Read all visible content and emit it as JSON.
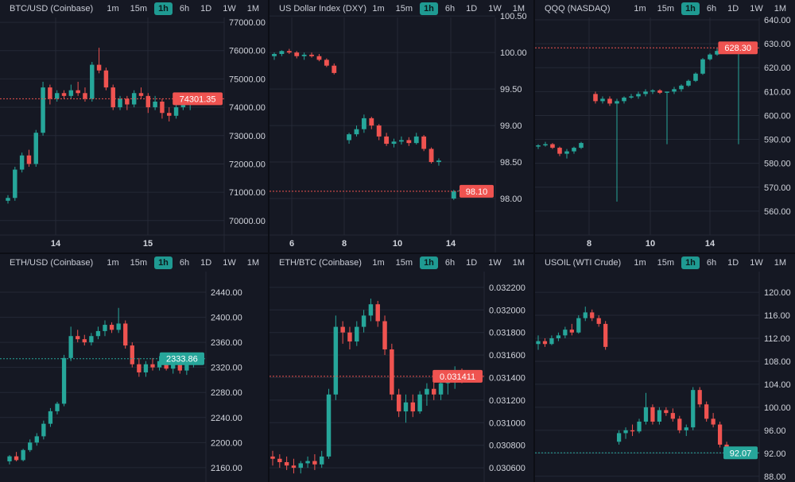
{
  "timeframes": [
    "1m",
    "15m",
    "1h",
    "6h",
    "1D",
    "1W",
    "1M"
  ],
  "active_timeframe": "1h",
  "colors": {
    "up": "#26a69a",
    "down": "#ef5350",
    "background": "#151823",
    "grid": "#252936"
  },
  "chart_data": [
    {
      "type": "candlestick",
      "title": "BTC/USD (Coinbase)",
      "current_price": "74301.35",
      "price_direction": "down",
      "ylim": [
        69490,
        77170
      ],
      "y_ticks": [
        "77000.00",
        "76000.00",
        "75000.00",
        "74000.00",
        "73000.00",
        "72000.00",
        "71000.00",
        "70000.00"
      ],
      "x_ticks": [
        "14",
        "15"
      ],
      "candles": [
        [
          70700,
          70900,
          70600,
          70800
        ],
        [
          70800,
          71900,
          70700,
          71800
        ],
        [
          71800,
          72400,
          71700,
          72300
        ],
        [
          72300,
          72500,
          71900,
          72000
        ],
        [
          72000,
          73200,
          71900,
          73100
        ],
        [
          73100,
          74900,
          73000,
          74700
        ],
        [
          74700,
          74800,
          74100,
          74300
        ],
        [
          74300,
          74600,
          74200,
          74500
        ],
        [
          74500,
          74600,
          74300,
          74400
        ],
        [
          74400,
          74800,
          74300,
          74600
        ],
        [
          74600,
          74900,
          74400,
          74500
        ],
        [
          74500,
          74700,
          74200,
          74300
        ],
        [
          74300,
          75600,
          74200,
          75500
        ],
        [
          75500,
          76100,
          75200,
          75300
        ],
        [
          75300,
          75400,
          74600,
          74700
        ],
        [
          74700,
          74800,
          73900,
          74000
        ],
        [
          74000,
          74400,
          73900,
          74300
        ],
        [
          74300,
          74400,
          73900,
          74100
        ],
        [
          74100,
          74600,
          74000,
          74500
        ],
        [
          74500,
          74700,
          74300,
          74400
        ],
        [
          74400,
          74500,
          73800,
          74000
        ],
        [
          74000,
          74400,
          73900,
          74200
        ],
        [
          74200,
          74300,
          73600,
          73800
        ],
        [
          73800,
          74000,
          73500,
          73700
        ],
        [
          73700,
          74100,
          73600,
          74000
        ],
        [
          74000,
          74300,
          73900,
          74100
        ],
        [
          74100,
          74400,
          73900,
          74300
        ],
        [
          74300,
          74500,
          74200,
          74301.35
        ]
      ]
    },
    {
      "type": "candlestick",
      "title": "US Dollar Index (DXY)",
      "current_price": "98.10",
      "price_direction": "down",
      "ylim": [
        97.5,
        100.48
      ],
      "y_ticks": [
        "100.50",
        "100.00",
        "99.50",
        "99.00",
        "98.50",
        "98.00"
      ],
      "x_ticks": [
        "6",
        "8",
        "10",
        "14"
      ],
      "candles": [
        [
          99.95,
          100.0,
          99.9,
          99.98
        ],
        [
          99.98,
          100.03,
          99.95,
          100.02
        ],
        [
          100.02,
          100.05,
          99.98,
          100.0
        ],
        [
          100.0,
          100.02,
          99.92,
          99.95
        ],
        [
          99.95,
          100.0,
          99.9,
          99.97
        ],
        [
          99.97,
          100.0,
          99.93,
          99.95
        ],
        [
          99.95,
          99.98,
          99.88,
          99.9
        ],
        [
          99.9,
          99.92,
          99.8,
          99.82
        ],
        [
          99.82,
          99.85,
          99.7,
          99.72
        ],
        null,
        [
          98.8,
          98.9,
          98.75,
          98.88
        ],
        [
          98.88,
          99.0,
          98.85,
          98.95
        ],
        [
          98.95,
          99.15,
          98.9,
          99.1
        ],
        [
          99.1,
          99.12,
          98.95,
          99.0
        ],
        [
          99.0,
          99.02,
          98.8,
          98.85
        ],
        [
          98.85,
          98.9,
          98.72,
          98.75
        ],
        [
          98.75,
          98.82,
          98.7,
          98.78
        ],
        [
          98.78,
          98.85,
          98.74,
          98.8
        ],
        [
          98.8,
          98.84,
          98.72,
          98.76
        ],
        [
          98.76,
          98.9,
          98.74,
          98.85
        ],
        [
          98.85,
          98.87,
          98.65,
          98.68
        ],
        [
          98.68,
          98.7,
          98.48,
          98.5
        ],
        [
          98.5,
          98.55,
          98.45,
          98.52
        ],
        null,
        [
          98.0,
          98.12,
          97.98,
          98.1
        ],
        [
          98.1,
          98.14,
          98.05,
          98.12
        ],
        [
          98.12,
          98.13,
          98.06,
          98.08
        ],
        [
          98.08,
          98.12,
          98.05,
          98.1
        ]
      ]
    },
    {
      "type": "candlestick",
      "title": "QQQ (NASDAQ)",
      "current_price": "628.30",
      "price_direction": "down",
      "ylim": [
        550,
        641
      ],
      "y_ticks": [
        "640.00",
        "630.00",
        "620.00",
        "610.00",
        "600.00",
        "590.00",
        "580.00",
        "570.00",
        "560.00"
      ],
      "x_ticks": [
        "8",
        "10",
        "14"
      ],
      "candles": [
        [
          587,
          588,
          586,
          587.5
        ],
        [
          587.5,
          589,
          587,
          588
        ],
        [
          588,
          588.5,
          586,
          586.5
        ],
        [
          586.5,
          587,
          583,
          584
        ],
        [
          584,
          586,
          582,
          585
        ],
        [
          585,
          587,
          584,
          586.5
        ],
        [
          586.5,
          589,
          586,
          588.5
        ],
        null,
        [
          609,
          610,
          605,
          606
        ],
        [
          606,
          608,
          605,
          607
        ],
        [
          607,
          608,
          604,
          605
        ],
        [
          605,
          607,
          564,
          606
        ],
        [
          606,
          608,
          605,
          607.5
        ],
        [
          607.5,
          609,
          607,
          608
        ],
        [
          608,
          610,
          607,
          609
        ],
        [
          609,
          611,
          608,
          610
        ],
        [
          610,
          611,
          609,
          610.5
        ],
        [
          610.5,
          611,
          609,
          609.5
        ],
        [
          609.5,
          610,
          588,
          610
        ],
        [
          610,
          612,
          609,
          611
        ],
        [
          611,
          613,
          610,
          612.5
        ],
        [
          612.5,
          615,
          612,
          614.5
        ],
        [
          614.5,
          618,
          614,
          617.5
        ],
        [
          617.5,
          624,
          617,
          623.5
        ],
        [
          623.5,
          626,
          623,
          625.5
        ],
        [
          625.5,
          628,
          625,
          627
        ],
        [
          627,
          628.5,
          626,
          626.5
        ],
        [
          626.5,
          629,
          626,
          628.3
        ],
        [
          628.3,
          628.5,
          588,
          628.3
        ]
      ]
    },
    {
      "type": "candlestick",
      "title": "ETH/USD (Coinbase)",
      "current_price": "2333.86",
      "price_direction": "up",
      "ylim": [
        2137,
        2473
      ],
      "y_ticks": [
        "2440.00",
        "2400.00",
        "2360.00",
        "2320.00",
        "2280.00",
        "2240.00",
        "2200.00",
        "2160.00"
      ],
      "x_ticks": [],
      "candles": [
        [
          2170,
          2180,
          2165,
          2178
        ],
        [
          2178,
          2185,
          2170,
          2172
        ],
        [
          2172,
          2190,
          2170,
          2188
        ],
        [
          2188,
          2205,
          2185,
          2200
        ],
        [
          2200,
          2215,
          2195,
          2210
        ],
        [
          2210,
          2235,
          2205,
          2230
        ],
        [
          2230,
          2255,
          2225,
          2250
        ],
        [
          2250,
          2265,
          2245,
          2262
        ],
        [
          2262,
          2340,
          2258,
          2335
        ],
        [
          2335,
          2385,
          2330,
          2370
        ],
        [
          2370,
          2380,
          2360,
          2365
        ],
        [
          2365,
          2372,
          2355,
          2360
        ],
        [
          2360,
          2375,
          2355,
          2370
        ],
        [
          2370,
          2385,
          2365,
          2378
        ],
        [
          2378,
          2395,
          2370,
          2388
        ],
        [
          2388,
          2392,
          2375,
          2380
        ],
        [
          2380,
          2415,
          2375,
          2390
        ],
        [
          2390,
          2395,
          2350,
          2355
        ],
        [
          2355,
          2360,
          2320,
          2325
        ],
        [
          2325,
          2335,
          2305,
          2312
        ],
        [
          2312,
          2330,
          2305,
          2325
        ],
        [
          2325,
          2335,
          2315,
          2320
        ],
        [
          2320,
          2338,
          2315,
          2330
        ],
        [
          2330,
          2335,
          2315,
          2318
        ],
        [
          2318,
          2332,
          2310,
          2328
        ],
        [
          2328,
          2335,
          2310,
          2315
        ],
        [
          2315,
          2330,
          2308,
          2325
        ],
        [
          2325,
          2340,
          2320,
          2335
        ],
        [
          2335,
          2338,
          2328,
          2333.86
        ]
      ]
    },
    {
      "type": "candlestick",
      "title": "ETH/BTC (Coinbase)",
      "current_price": "0.031411",
      "price_direction": "down",
      "ylim": [
        0.030474,
        0.03234
      ],
      "y_ticks": [
        "0.032200",
        "0.032000",
        "0.031800",
        "0.031600",
        "0.031400",
        "0.031200",
        "0.031000",
        "0.030800",
        "0.030600"
      ],
      "x_ticks": [],
      "candles": [
        [
          0.0307,
          0.03075,
          0.03062,
          0.03068
        ],
        [
          0.03068,
          0.03072,
          0.0306,
          0.03065
        ],
        [
          0.03065,
          0.0307,
          0.03058,
          0.03062
        ],
        [
          0.03062,
          0.03068,
          0.03055,
          0.0306
        ],
        [
          0.0306,
          0.03066,
          0.03055,
          0.03064
        ],
        [
          0.03064,
          0.0307,
          0.0306,
          0.03066
        ],
        [
          0.03066,
          0.03072,
          0.03058,
          0.03063
        ],
        [
          0.03063,
          0.03075,
          0.0306,
          0.0307
        ],
        [
          0.0307,
          0.0313,
          0.03068,
          0.03125
        ],
        [
          0.03125,
          0.03195,
          0.0312,
          0.03185
        ],
        [
          0.03185,
          0.0319,
          0.0317,
          0.0318
        ],
        [
          0.0318,
          0.03185,
          0.03165,
          0.03172
        ],
        [
          0.03172,
          0.0319,
          0.03168,
          0.03185
        ],
        [
          0.03185,
          0.032,
          0.0318,
          0.03195
        ],
        [
          0.03195,
          0.0321,
          0.0319,
          0.03205
        ],
        [
          0.03205,
          0.03208,
          0.03185,
          0.0319
        ],
        [
          0.0319,
          0.03195,
          0.0316,
          0.03165
        ],
        [
          0.03165,
          0.0317,
          0.0312,
          0.03125
        ],
        [
          0.03125,
          0.0313,
          0.03105,
          0.0311
        ],
        [
          0.0311,
          0.03125,
          0.031,
          0.03118
        ],
        [
          0.03118,
          0.03125,
          0.03105,
          0.0311
        ],
        [
          0.0311,
          0.03128,
          0.03108,
          0.03125
        ],
        [
          0.03125,
          0.03135,
          0.03115,
          0.0313
        ],
        [
          0.0313,
          0.03138,
          0.0312,
          0.03125
        ],
        [
          0.03125,
          0.0314,
          0.0312,
          0.03135
        ],
        [
          0.03135,
          0.03142,
          0.03125,
          0.03138
        ],
        [
          0.03138,
          0.0315,
          0.0313,
          0.03145
        ],
        [
          0.03145,
          0.03148,
          0.03135,
          0.031411
        ]
      ]
    },
    {
      "type": "candlestick",
      "title": "USOIL (WTI Crude)",
      "current_price": "92.07",
      "price_direction": "up",
      "ylim": [
        87,
        123.6
      ],
      "y_ticks": [
        "120.00",
        "116.00",
        "112.00",
        "108.00",
        "104.00",
        "100.00",
        "96.00",
        "92.00",
        "88.00"
      ],
      "x_ticks": [],
      "candles": [
        [
          111,
          112.5,
          110,
          111.5
        ],
        [
          111.5,
          112,
          110.5,
          111
        ],
        [
          111,
          112.5,
          110.8,
          112
        ],
        [
          112,
          113,
          111.5,
          112.5
        ],
        [
          112.5,
          114,
          112,
          113.5
        ],
        [
          113.5,
          114.5,
          112.5,
          113
        ],
        [
          113,
          116,
          112.8,
          115.5
        ],
        [
          115.5,
          117.5,
          115,
          116.5
        ],
        [
          116.5,
          117,
          115,
          115.5
        ],
        [
          115.5,
          116,
          114,
          114.5
        ],
        [
          114.5,
          115,
          110,
          110.5
        ],
        null,
        [
          94,
          96,
          93.5,
          95.5
        ],
        [
          95.5,
          96.5,
          94.5,
          96
        ],
        [
          96,
          97,
          95,
          95.8
        ],
        [
          95.8,
          98,
          95.5,
          97.5
        ],
        [
          97.5,
          102.5,
          97,
          100
        ],
        [
          100,
          100.5,
          97,
          97.5
        ],
        [
          97.5,
          100,
          97,
          99.5
        ],
        [
          99.5,
          100,
          98.5,
          99
        ],
        [
          99,
          99.8,
          97.5,
          98
        ],
        [
          98,
          98.5,
          95.5,
          96
        ],
        [
          96,
          97,
          95,
          96.5
        ],
        [
          96.5,
          103.5,
          96,
          103
        ],
        [
          103,
          103.5,
          100,
          100.5
        ],
        [
          100.5,
          101,
          97.5,
          98
        ],
        [
          98,
          99,
          96.5,
          97
        ],
        [
          97,
          97.5,
          93,
          93.5
        ],
        [
          93.5,
          94,
          92,
          92.5
        ],
        [
          92.5,
          93,
          91.5,
          92
        ],
        [
          92,
          92.5,
          91.8,
          92.07
        ]
      ]
    }
  ]
}
